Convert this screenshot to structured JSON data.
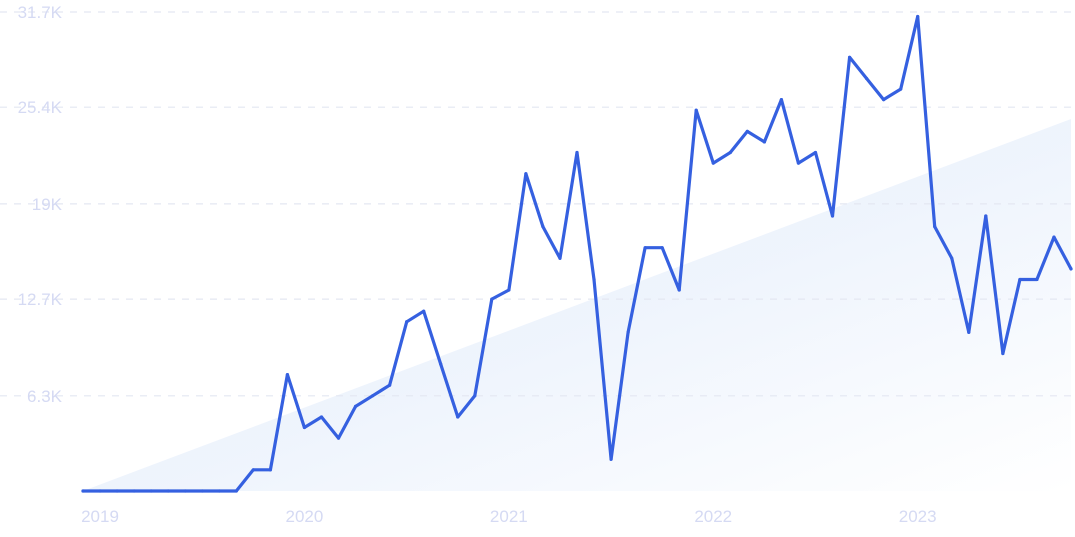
{
  "chart_data": {
    "type": "line",
    "x_unit": "month",
    "x_start": "2019-01",
    "x_end": "2023-11",
    "xticks": [
      "2019",
      "2020",
      "2021",
      "2022",
      "2023"
    ],
    "yticks": [
      "6.3K",
      "12.7K",
      "19K",
      "25.4K",
      "31.7K"
    ],
    "ylim": [
      0,
      31700
    ],
    "grid": true,
    "trend_fill": true,
    "colors": {
      "line": "#3560e0",
      "trend_fill": "#dce8fa",
      "grid": "#e4e7f2",
      "tick_text": "#d5daf3"
    },
    "series": [
      {
        "x": [
          "2019-01",
          "2019-02",
          "2019-03",
          "2019-04",
          "2019-05",
          "2019-06",
          "2019-07",
          "2019-08",
          "2019-09",
          "2019-10",
          "2019-11",
          "2019-12",
          "2020-01",
          "2020-02",
          "2020-03",
          "2020-04",
          "2020-05",
          "2020-06",
          "2020-07",
          "2020-08",
          "2020-09",
          "2020-10",
          "2020-11",
          "2020-12",
          "2021-01",
          "2021-02",
          "2021-03",
          "2021-04",
          "2021-05",
          "2021-06",
          "2021-07",
          "2021-08",
          "2021-09",
          "2021-10",
          "2021-11",
          "2021-12",
          "2022-01",
          "2022-02",
          "2022-03",
          "2022-04",
          "2022-05",
          "2022-06",
          "2022-07",
          "2022-08",
          "2022-09",
          "2022-10",
          "2022-11",
          "2022-12",
          "2023-01",
          "2023-02",
          "2023-03",
          "2023-04",
          "2023-05",
          "2023-06",
          "2023-07",
          "2023-08",
          "2023-09",
          "2023-10",
          "2023-11"
        ],
        "values": [
          0,
          0,
          0,
          0,
          0,
          0,
          0,
          0,
          0,
          0,
          1400,
          1400,
          7700,
          4200,
          4900,
          3500,
          5600,
          6300,
          7000,
          11200,
          11900,
          8400,
          4900,
          6300,
          12700,
          13300,
          21000,
          17500,
          15400,
          22400,
          14000,
          2100,
          10500,
          16100,
          16100,
          13300,
          25200,
          21700,
          22400,
          23800,
          23100,
          25900,
          21700,
          22400,
          18200,
          28700,
          27300,
          25900,
          26600,
          31400,
          17500,
          15400,
          10500,
          18200,
          9100,
          14000,
          14000,
          16800,
          14700
        ]
      }
    ]
  }
}
